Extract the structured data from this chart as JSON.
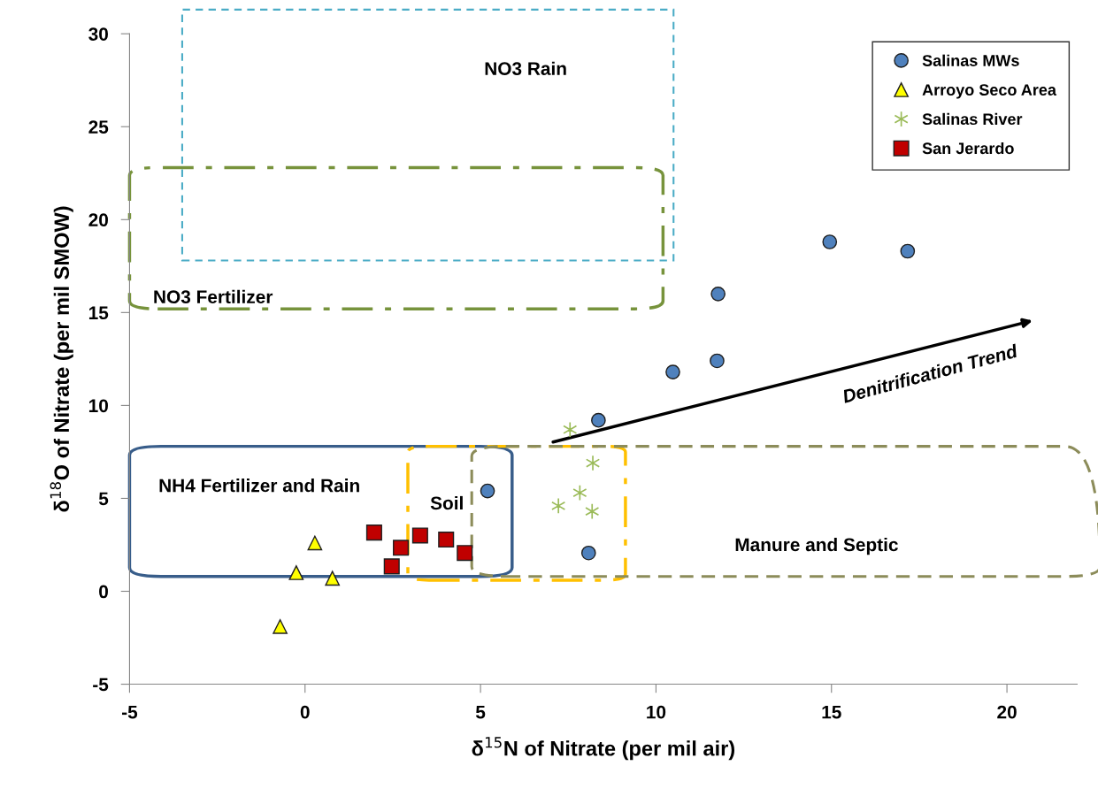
{
  "chart_data": {
    "type": "scatter",
    "xlabel": "δ$^{15}$N of Nitrate (per mil air)",
    "ylabel": "δ$^{18}$O of Nitrate (per mil SMOW)",
    "xlim": [
      -5,
      22
    ],
    "xticks": [
      -5,
      0,
      5,
      10,
      15,
      20
    ],
    "ylim": [
      -5,
      30
    ],
    "yticks": [
      -5,
      0,
      5,
      10,
      15,
      20,
      25,
      30
    ],
    "grid": false,
    "legend": "top right",
    "series": [
      {
        "name": "Salinas MWs",
        "color": "#4f81bd",
        "marker": "circle",
        "x": [
          5.2,
          8.08,
          8.36,
          10.48,
          11.74,
          11.77,
          14.95,
          17.17
        ],
        "values": [
          5.4,
          2.06,
          9.2,
          11.8,
          12.4,
          16.0,
          18.8,
          18.3
        ]
      },
      {
        "name": "Arroyo Seco Area",
        "color": "#ffff00",
        "marker": "triangle",
        "x": [
          0.28,
          -0.25,
          0.78,
          -0.71
        ],
        "values": [
          2.6,
          1.0,
          0.7,
          -1.9
        ]
      },
      {
        "name": "Salinas River",
        "color": "#9bbb59",
        "marker": "cross",
        "x": [
          7.55,
          8.2,
          7.83,
          7.22,
          8.18
        ],
        "values": [
          8.7,
          6.9,
          5.3,
          4.6,
          4.3
        ]
      },
      {
        "name": "San Jerardo",
        "color": "#c00000",
        "marker": "square",
        "x": [
          1.97,
          2.73,
          2.47,
          3.28,
          4.02,
          4.55
        ],
        "values": [
          3.16,
          2.34,
          1.34,
          3.0,
          2.78,
          2.06
        ]
      }
    ],
    "annotations": [
      "NO3 Rain",
      "NO3 Fertilizer",
      "NH4 Fertilizer and Rain",
      "Soil",
      "Manure and Septic",
      "Denitrification Trend"
    ]
  }
}
